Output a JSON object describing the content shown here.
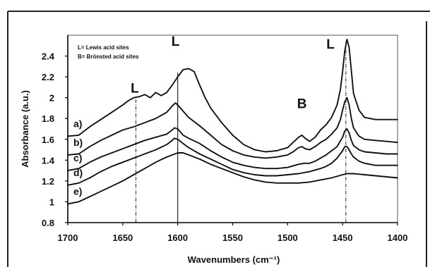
{
  "chart_data": {
    "type": "line",
    "xlabel": "Wavenumbers (cm⁻¹)",
    "ylabel": "Absorbance (a.u.)",
    "xlim": [
      1700,
      1400
    ],
    "ylim": [
      0.8,
      2.6
    ],
    "x_reversed": true,
    "x_ticks": [
      1700,
      1650,
      1600,
      1550,
      1500,
      1450,
      1400
    ],
    "y_ticks": [
      0.8,
      1,
      1.2,
      1.4,
      1.6,
      1.8,
      2,
      2.2,
      2.4
    ],
    "x_tick_labels": [
      "1700",
      "1650",
      "1600",
      "1550",
      "1500",
      "1450",
      "1400"
    ],
    "y_tick_labels": [
      "0.8",
      "1",
      "1.2",
      "1.4",
      "1.6",
      "1.8",
      "2",
      "2.2",
      "2.4"
    ],
    "grid": false,
    "legend_text": [
      "L= Lewis acid sites",
      "B= Brönsted acid sites"
    ],
    "legend_placement": "top-left",
    "annotations": [
      {
        "text": "L",
        "x": 1639,
        "y": 2.05
      },
      {
        "text": "L",
        "x": 1602,
        "y": 2.5
      },
      {
        "text": "B",
        "x": 1487,
        "y": 1.9
      },
      {
        "text": "L",
        "x": 1461,
        "y": 2.47
      }
    ],
    "reference_lines": [
      {
        "x": 1638,
        "from": 0.8,
        "to": 2.0,
        "style": "dashdot"
      },
      {
        "x": 1600,
        "from": 0.8,
        "to": 2.24,
        "style": "solid"
      },
      {
        "x": 1447,
        "from": 0.8,
        "to": 2.56,
        "style": "dashdot"
      }
    ],
    "series_labels": [
      "a)",
      "b)",
      "c)",
      "d)",
      "e)"
    ],
    "series": [
      {
        "name": "a)",
        "x": [
          1700,
          1690,
          1680,
          1670,
          1660,
          1650,
          1645,
          1640,
          1635,
          1630,
          1625,
          1620,
          1615,
          1610,
          1605,
          1600,
          1595,
          1590,
          1585,
          1580,
          1575,
          1570,
          1560,
          1550,
          1540,
          1530,
          1520,
          1510,
          1500,
          1495,
          1490,
          1487,
          1484,
          1480,
          1475,
          1470,
          1465,
          1460,
          1455,
          1452,
          1450,
          1448,
          1446,
          1444,
          1442,
          1440,
          1435,
          1430,
          1420,
          1410,
          1400
        ],
        "values": [
          1.63,
          1.64,
          1.72,
          1.79,
          1.86,
          1.93,
          1.97,
          2.0,
          2.01,
          2.03,
          2.0,
          2.05,
          2.02,
          2.05,
          2.12,
          2.2,
          2.27,
          2.28,
          2.25,
          2.12,
          2.0,
          1.9,
          1.76,
          1.64,
          1.55,
          1.5,
          1.48,
          1.49,
          1.52,
          1.57,
          1.62,
          1.64,
          1.61,
          1.58,
          1.62,
          1.69,
          1.74,
          1.81,
          1.93,
          2.08,
          2.25,
          2.45,
          2.56,
          2.48,
          2.26,
          2.04,
          1.88,
          1.81,
          1.79,
          1.79,
          1.79
        ]
      },
      {
        "name": "b)",
        "x": [
          1700,
          1690,
          1680,
          1670,
          1660,
          1650,
          1640,
          1630,
          1620,
          1615,
          1610,
          1605,
          1602,
          1600,
          1595,
          1590,
          1580,
          1570,
          1560,
          1550,
          1540,
          1530,
          1520,
          1510,
          1500,
          1495,
          1490,
          1487,
          1484,
          1480,
          1475,
          1470,
          1465,
          1460,
          1455,
          1452,
          1450,
          1448,
          1446,
          1444,
          1442,
          1440,
          1435,
          1430,
          1420,
          1410,
          1400
        ],
        "values": [
          1.45,
          1.46,
          1.53,
          1.59,
          1.64,
          1.69,
          1.72,
          1.76,
          1.8,
          1.83,
          1.86,
          1.92,
          1.95,
          1.93,
          1.87,
          1.81,
          1.73,
          1.64,
          1.55,
          1.49,
          1.45,
          1.43,
          1.42,
          1.43,
          1.45,
          1.48,
          1.52,
          1.53,
          1.51,
          1.5,
          1.53,
          1.57,
          1.6,
          1.65,
          1.71,
          1.79,
          1.88,
          1.96,
          2.0,
          1.93,
          1.8,
          1.71,
          1.63,
          1.6,
          1.59,
          1.58,
          1.57
        ]
      },
      {
        "name": "c)",
        "x": [
          1700,
          1690,
          1680,
          1670,
          1660,
          1650,
          1640,
          1630,
          1620,
          1610,
          1605,
          1603,
          1600,
          1595,
          1590,
          1580,
          1570,
          1560,
          1550,
          1540,
          1530,
          1520,
          1510,
          1500,
          1490,
          1485,
          1480,
          1475,
          1470,
          1465,
          1460,
          1455,
          1450,
          1448,
          1446,
          1444,
          1442,
          1440,
          1435,
          1430,
          1420,
          1410,
          1400
        ],
        "values": [
          1.3,
          1.32,
          1.38,
          1.43,
          1.47,
          1.51,
          1.55,
          1.59,
          1.62,
          1.65,
          1.69,
          1.71,
          1.7,
          1.64,
          1.61,
          1.56,
          1.49,
          1.43,
          1.38,
          1.35,
          1.33,
          1.32,
          1.32,
          1.33,
          1.36,
          1.37,
          1.37,
          1.39,
          1.42,
          1.45,
          1.49,
          1.53,
          1.62,
          1.68,
          1.7,
          1.66,
          1.59,
          1.54,
          1.5,
          1.48,
          1.47,
          1.46,
          1.46
        ]
      },
      {
        "name": "d)",
        "x": [
          1700,
          1690,
          1680,
          1670,
          1660,
          1650,
          1640,
          1630,
          1620,
          1610,
          1605,
          1603,
          1600,
          1595,
          1590,
          1580,
          1570,
          1560,
          1550,
          1540,
          1530,
          1520,
          1510,
          1500,
          1490,
          1480,
          1470,
          1465,
          1460,
          1455,
          1450,
          1448,
          1446,
          1444,
          1442,
          1440,
          1435,
          1430,
          1420,
          1410,
          1400
        ],
        "values": [
          1.16,
          1.18,
          1.23,
          1.29,
          1.34,
          1.38,
          1.42,
          1.46,
          1.5,
          1.55,
          1.59,
          1.61,
          1.6,
          1.56,
          1.52,
          1.46,
          1.41,
          1.36,
          1.31,
          1.28,
          1.26,
          1.25,
          1.25,
          1.26,
          1.27,
          1.29,
          1.32,
          1.34,
          1.37,
          1.42,
          1.49,
          1.53,
          1.53,
          1.5,
          1.46,
          1.43,
          1.39,
          1.37,
          1.35,
          1.35,
          1.35
        ]
      },
      {
        "name": "e)",
        "x": [
          1700,
          1690,
          1680,
          1670,
          1660,
          1650,
          1640,
          1630,
          1620,
          1610,
          1600,
          1595,
          1590,
          1580,
          1570,
          1560,
          1550,
          1540,
          1530,
          1520,
          1510,
          1500,
          1490,
          1480,
          1470,
          1460,
          1450,
          1446,
          1440,
          1430,
          1420,
          1410,
          1400
        ],
        "values": [
          0.98,
          1.0,
          1.05,
          1.1,
          1.15,
          1.2,
          1.26,
          1.32,
          1.38,
          1.43,
          1.47,
          1.47,
          1.45,
          1.41,
          1.36,
          1.32,
          1.28,
          1.24,
          1.21,
          1.19,
          1.18,
          1.18,
          1.18,
          1.19,
          1.21,
          1.23,
          1.26,
          1.27,
          1.27,
          1.26,
          1.25,
          1.24,
          1.23
        ]
      }
    ]
  }
}
